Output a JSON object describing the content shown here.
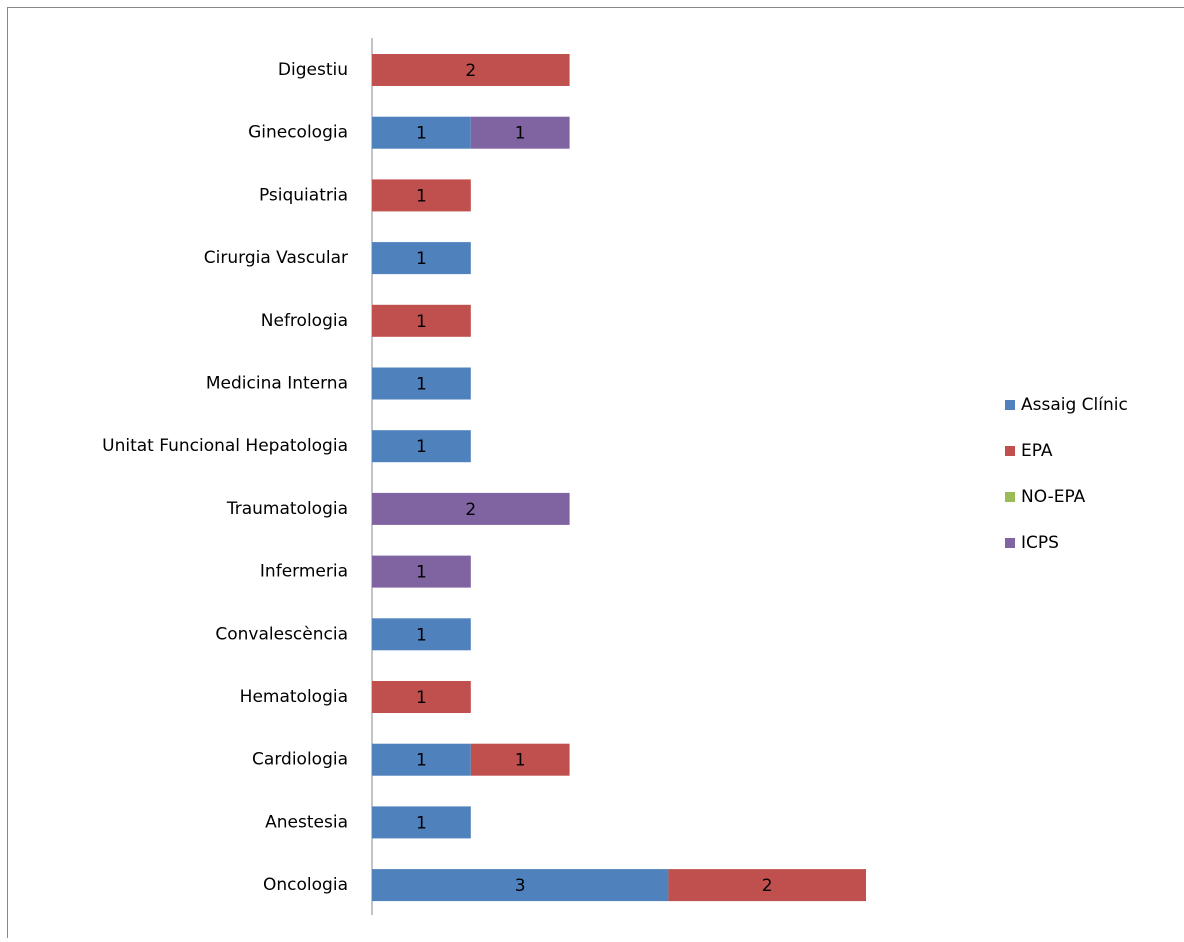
{
  "chart_data": {
    "type": "stacked-bar-horizontal",
    "categories": [
      "Digestiu",
      "Ginecologia",
      "Psiquiatria",
      "Cirurgia Vascular",
      "Nefrologia",
      "Medicina Interna",
      "Unitat Funcional Hepatologia",
      "Traumatologia",
      "Infermeria",
      "Convalescència",
      "Hematologia",
      "Cardiologia",
      "Anestesia",
      "Oncologia"
    ],
    "series": [
      {
        "name": "Assaig Clínic",
        "color": "#4f81bd",
        "values": [
          null,
          1,
          null,
          1,
          null,
          1,
          1,
          null,
          null,
          1,
          null,
          1,
          1,
          3
        ]
      },
      {
        "name": "EPA",
        "color": "#c0504d",
        "values": [
          2,
          null,
          1,
          null,
          1,
          null,
          null,
          null,
          null,
          null,
          1,
          1,
          null,
          2
        ]
      },
      {
        "name": "NO-EPA",
        "color": "#9bbb59",
        "values": [
          null,
          null,
          null,
          null,
          null,
          null,
          null,
          null,
          null,
          null,
          null,
          null,
          null,
          null
        ]
      },
      {
        "name": "ICPS",
        "color": "#8064a2",
        "values": [
          null,
          1,
          null,
          null,
          null,
          null,
          null,
          2,
          1,
          null,
          null,
          null,
          null,
          null
        ]
      }
    ],
    "legend": "right"
  }
}
